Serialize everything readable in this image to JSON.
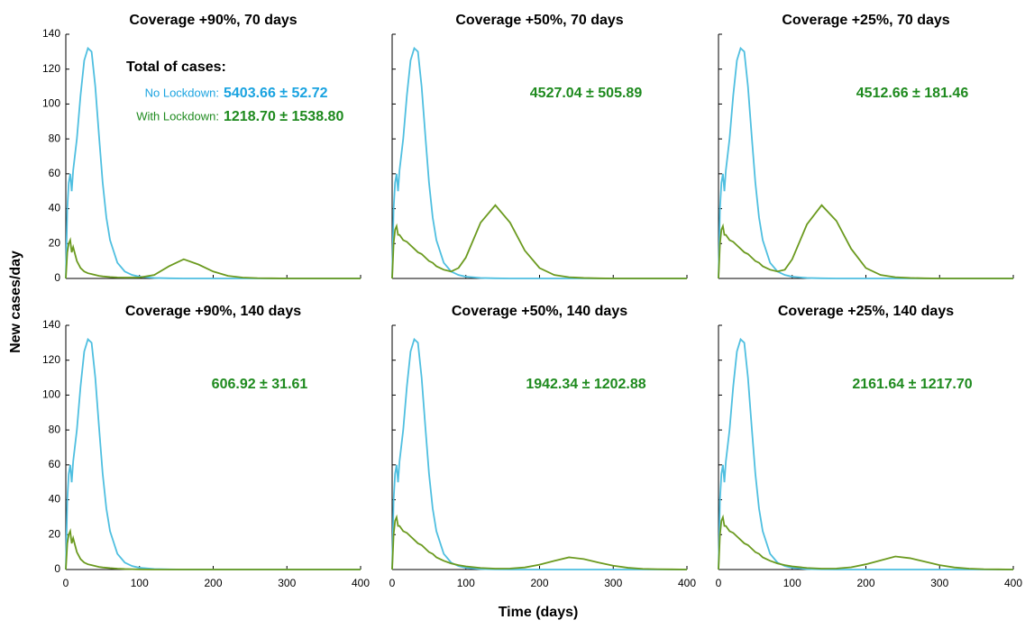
{
  "xlabel": "Time (days)",
  "ylabel": "New cases/day",
  "chart_data": [
    {
      "type": "line",
      "title": "Coverage +90%, 70 days",
      "x": [
        0,
        2,
        4,
        6,
        8,
        10,
        15,
        20,
        25,
        30,
        35,
        40,
        45,
        50,
        55,
        60,
        70,
        80,
        90,
        100,
        120,
        140,
        160,
        180,
        200,
        220,
        240,
        260,
        280,
        300,
        320,
        340,
        360,
        380,
        400
      ],
      "series": [
        {
          "name": "No Lockdown:",
          "color": "#4fbfe0",
          "values": [
            0,
            40,
            55,
            60,
            50,
            62,
            80,
            105,
            125,
            132,
            130,
            110,
            82,
            55,
            35,
            22,
            9,
            4,
            2,
            1,
            0.3,
            0.1,
            0,
            0,
            0,
            0,
            0,
            0,
            0,
            0,
            0,
            0,
            0,
            0,
            0
          ]
        },
        {
          "name": "With Lockdown:",
          "color": "#6b9a1f",
          "values": [
            0,
            15,
            20,
            22,
            15,
            18,
            10,
            6,
            4,
            3,
            2.5,
            2,
            1.5,
            1.2,
            1,
            0.8,
            0.6,
            0.5,
            0.5,
            0.6,
            2,
            7,
            11,
            8,
            4,
            1.5,
            0.5,
            0.2,
            0.1,
            0,
            0,
            0,
            0,
            0,
            0
          ]
        }
      ],
      "annotations": [
        {
          "text": "Total of cases:",
          "color": "#000000"
        },
        {
          "text": "5403.66 ± 52.72",
          "color": "#1aa3e0"
        },
        {
          "text": "1218.70 ± 1538.80",
          "color": "#1e8a1e"
        }
      ],
      "xlim": [
        0,
        400
      ],
      "xticks": [
        0,
        100,
        200,
        300,
        400
      ],
      "ylim": [
        0,
        140
      ],
      "yticks": [
        0,
        20,
        40,
        60,
        80,
        100,
        120,
        140
      ]
    },
    {
      "type": "line",
      "title": "Coverage +50%, 70 days",
      "x": [
        0,
        2,
        4,
        6,
        8,
        10,
        15,
        20,
        25,
        30,
        35,
        40,
        45,
        50,
        55,
        60,
        70,
        80,
        90,
        100,
        120,
        140,
        160,
        180,
        200,
        220,
        240,
        260,
        280,
        300,
        320,
        340,
        360,
        380,
        400
      ],
      "series": [
        {
          "color": "#4fbfe0",
          "values": [
            0,
            40,
            55,
            60,
            50,
            62,
            80,
            105,
            125,
            132,
            130,
            110,
            82,
            55,
            35,
            22,
            9,
            4,
            2,
            1,
            0.3,
            0.1,
            0,
            0,
            0,
            0,
            0,
            0,
            0,
            0,
            0,
            0,
            0,
            0,
            0
          ]
        },
        {
          "color": "#6b9a1f",
          "values": [
            0,
            20,
            28,
            30,
            25,
            25,
            22,
            21,
            19,
            17,
            15,
            14,
            12,
            10,
            9,
            7,
            5,
            4,
            6,
            12,
            32,
            42,
            32,
            16,
            6,
            2,
            0.7,
            0.3,
            0.1,
            0,
            0,
            0,
            0,
            0,
            0
          ]
        }
      ],
      "annotations": [
        {
          "text": "4527.04 ± 505.89",
          "color": "#1e8a1e"
        }
      ],
      "xlim": [
        0,
        400
      ],
      "xticks": [
        0,
        100,
        200,
        300,
        400
      ],
      "ylim": [
        0,
        140
      ],
      "yticks": [
        0,
        20,
        40,
        60,
        80,
        100,
        120,
        140
      ]
    },
    {
      "type": "line",
      "title": "Coverage +25%, 70 days",
      "x": [
        0,
        2,
        4,
        6,
        8,
        10,
        15,
        20,
        25,
        30,
        35,
        40,
        45,
        50,
        55,
        60,
        70,
        80,
        90,
        100,
        120,
        140,
        160,
        180,
        200,
        220,
        240,
        260,
        280,
        300,
        320,
        340,
        360,
        380,
        400
      ],
      "series": [
        {
          "color": "#4fbfe0",
          "values": [
            0,
            40,
            55,
            60,
            50,
            62,
            80,
            105,
            125,
            132,
            130,
            110,
            82,
            55,
            35,
            22,
            9,
            4,
            2,
            1,
            0.3,
            0.1,
            0,
            0,
            0,
            0,
            0,
            0,
            0,
            0,
            0,
            0,
            0,
            0,
            0
          ]
        },
        {
          "color": "#6b9a1f",
          "values": [
            0,
            20,
            28,
            30,
            25,
            25,
            22,
            21,
            19,
            17,
            15,
            14,
            12,
            10,
            9,
            7,
            5,
            4,
            5,
            11,
            31,
            42,
            33,
            17,
            6,
            2,
            0.7,
            0.3,
            0.1,
            0,
            0,
            0,
            0,
            0,
            0
          ]
        }
      ],
      "annotations": [
        {
          "text": "4512.66 ± 181.46",
          "color": "#1e8a1e"
        }
      ],
      "xlim": [
        0,
        400
      ],
      "xticks": [
        0,
        100,
        200,
        300,
        400
      ],
      "ylim": [
        0,
        140
      ],
      "yticks": [
        0,
        20,
        40,
        60,
        80,
        100,
        120,
        140
      ]
    },
    {
      "type": "line",
      "title": "Coverage +90%, 140 days",
      "x": [
        0,
        2,
        4,
        6,
        8,
        10,
        15,
        20,
        25,
        30,
        35,
        40,
        45,
        50,
        55,
        60,
        70,
        80,
        90,
        100,
        120,
        140,
        160,
        180,
        200,
        220,
        240,
        260,
        280,
        300,
        320,
        340,
        360,
        380,
        400
      ],
      "series": [
        {
          "color": "#4fbfe0",
          "values": [
            0,
            40,
            55,
            60,
            50,
            62,
            80,
            105,
            125,
            132,
            130,
            110,
            82,
            55,
            35,
            22,
            9,
            4,
            2,
            1,
            0.3,
            0.1,
            0,
            0,
            0,
            0,
            0,
            0,
            0,
            0,
            0,
            0,
            0,
            0,
            0
          ]
        },
        {
          "color": "#6b9a1f",
          "values": [
            0,
            15,
            20,
            22,
            15,
            18,
            10,
            6,
            4,
            3,
            2.5,
            2,
            1.5,
            1.2,
            1,
            0.8,
            0.5,
            0.3,
            0.2,
            0.1,
            0,
            0,
            0,
            0,
            0,
            0,
            0,
            0,
            0,
            0,
            0,
            0,
            0,
            0,
            0
          ]
        }
      ],
      "annotations": [
        {
          "text": "606.92 ± 31.61",
          "color": "#1e8a1e"
        }
      ],
      "xlim": [
        0,
        400
      ],
      "xticks": [
        0,
        100,
        200,
        300,
        400
      ],
      "ylim": [
        0,
        140
      ],
      "yticks": [
        0,
        20,
        40,
        60,
        80,
        100,
        120,
        140
      ]
    },
    {
      "type": "line",
      "title": "Coverage +50%, 140 days",
      "x": [
        0,
        2,
        4,
        6,
        8,
        10,
        15,
        20,
        25,
        30,
        35,
        40,
        45,
        50,
        55,
        60,
        70,
        80,
        90,
        100,
        120,
        140,
        160,
        180,
        200,
        220,
        240,
        260,
        280,
        300,
        320,
        340,
        360,
        380,
        400
      ],
      "series": [
        {
          "color": "#4fbfe0",
          "values": [
            0,
            40,
            55,
            60,
            50,
            62,
            80,
            105,
            125,
            132,
            130,
            110,
            82,
            55,
            35,
            22,
            9,
            4,
            2,
            1,
            0.3,
            0.1,
            0,
            0,
            0,
            0,
            0,
            0,
            0,
            0,
            0,
            0,
            0,
            0,
            0
          ]
        },
        {
          "color": "#6b9a1f",
          "values": [
            0,
            20,
            28,
            30,
            25,
            25,
            22,
            21,
            19,
            17,
            15,
            14,
            12,
            10,
            9,
            7,
            5,
            3.5,
            2.5,
            1.8,
            0.9,
            0.5,
            0.6,
            1.2,
            2.8,
            5,
            7,
            6,
            4,
            2.2,
            1,
            0.4,
            0.2,
            0.1,
            0
          ]
        }
      ],
      "annotations": [
        {
          "text": "1942.34 ± 1202.88",
          "color": "#1e8a1e"
        }
      ],
      "xlim": [
        0,
        400
      ],
      "xticks": [
        0,
        100,
        200,
        300,
        400
      ],
      "ylim": [
        0,
        140
      ],
      "yticks": [
        0,
        20,
        40,
        60,
        80,
        100,
        120,
        140
      ]
    },
    {
      "type": "line",
      "title": "Coverage +25%, 140 days",
      "x": [
        0,
        2,
        4,
        6,
        8,
        10,
        15,
        20,
        25,
        30,
        35,
        40,
        45,
        50,
        55,
        60,
        70,
        80,
        90,
        100,
        120,
        140,
        160,
        180,
        200,
        220,
        240,
        260,
        280,
        300,
        320,
        340,
        360,
        380,
        400
      ],
      "series": [
        {
          "color": "#4fbfe0",
          "values": [
            0,
            40,
            55,
            60,
            50,
            62,
            80,
            105,
            125,
            132,
            130,
            110,
            82,
            55,
            35,
            22,
            9,
            4,
            2,
            1,
            0.3,
            0.1,
            0,
            0,
            0,
            0,
            0,
            0,
            0,
            0,
            0,
            0,
            0,
            0,
            0
          ]
        },
        {
          "color": "#6b9a1f",
          "values": [
            0,
            20,
            28,
            30,
            25,
            25,
            22,
            21,
            19,
            17,
            15,
            14,
            12,
            10,
            9,
            7,
            5,
            3.5,
            2.5,
            1.8,
            0.9,
            0.5,
            0.6,
            1.3,
            3,
            5.2,
            7.5,
            6.5,
            4.5,
            2.5,
            1.2,
            0.5,
            0.2,
            0.1,
            0
          ]
        }
      ],
      "annotations": [
        {
          "text": "2161.64 ± 1217.70",
          "color": "#1e8a1e"
        }
      ],
      "xlim": [
        0,
        400
      ],
      "xticks": [
        0,
        100,
        200,
        300,
        400
      ],
      "ylim": [
        0,
        140
      ],
      "yticks": [
        0,
        20,
        40,
        60,
        80,
        100,
        120,
        140
      ]
    }
  ]
}
